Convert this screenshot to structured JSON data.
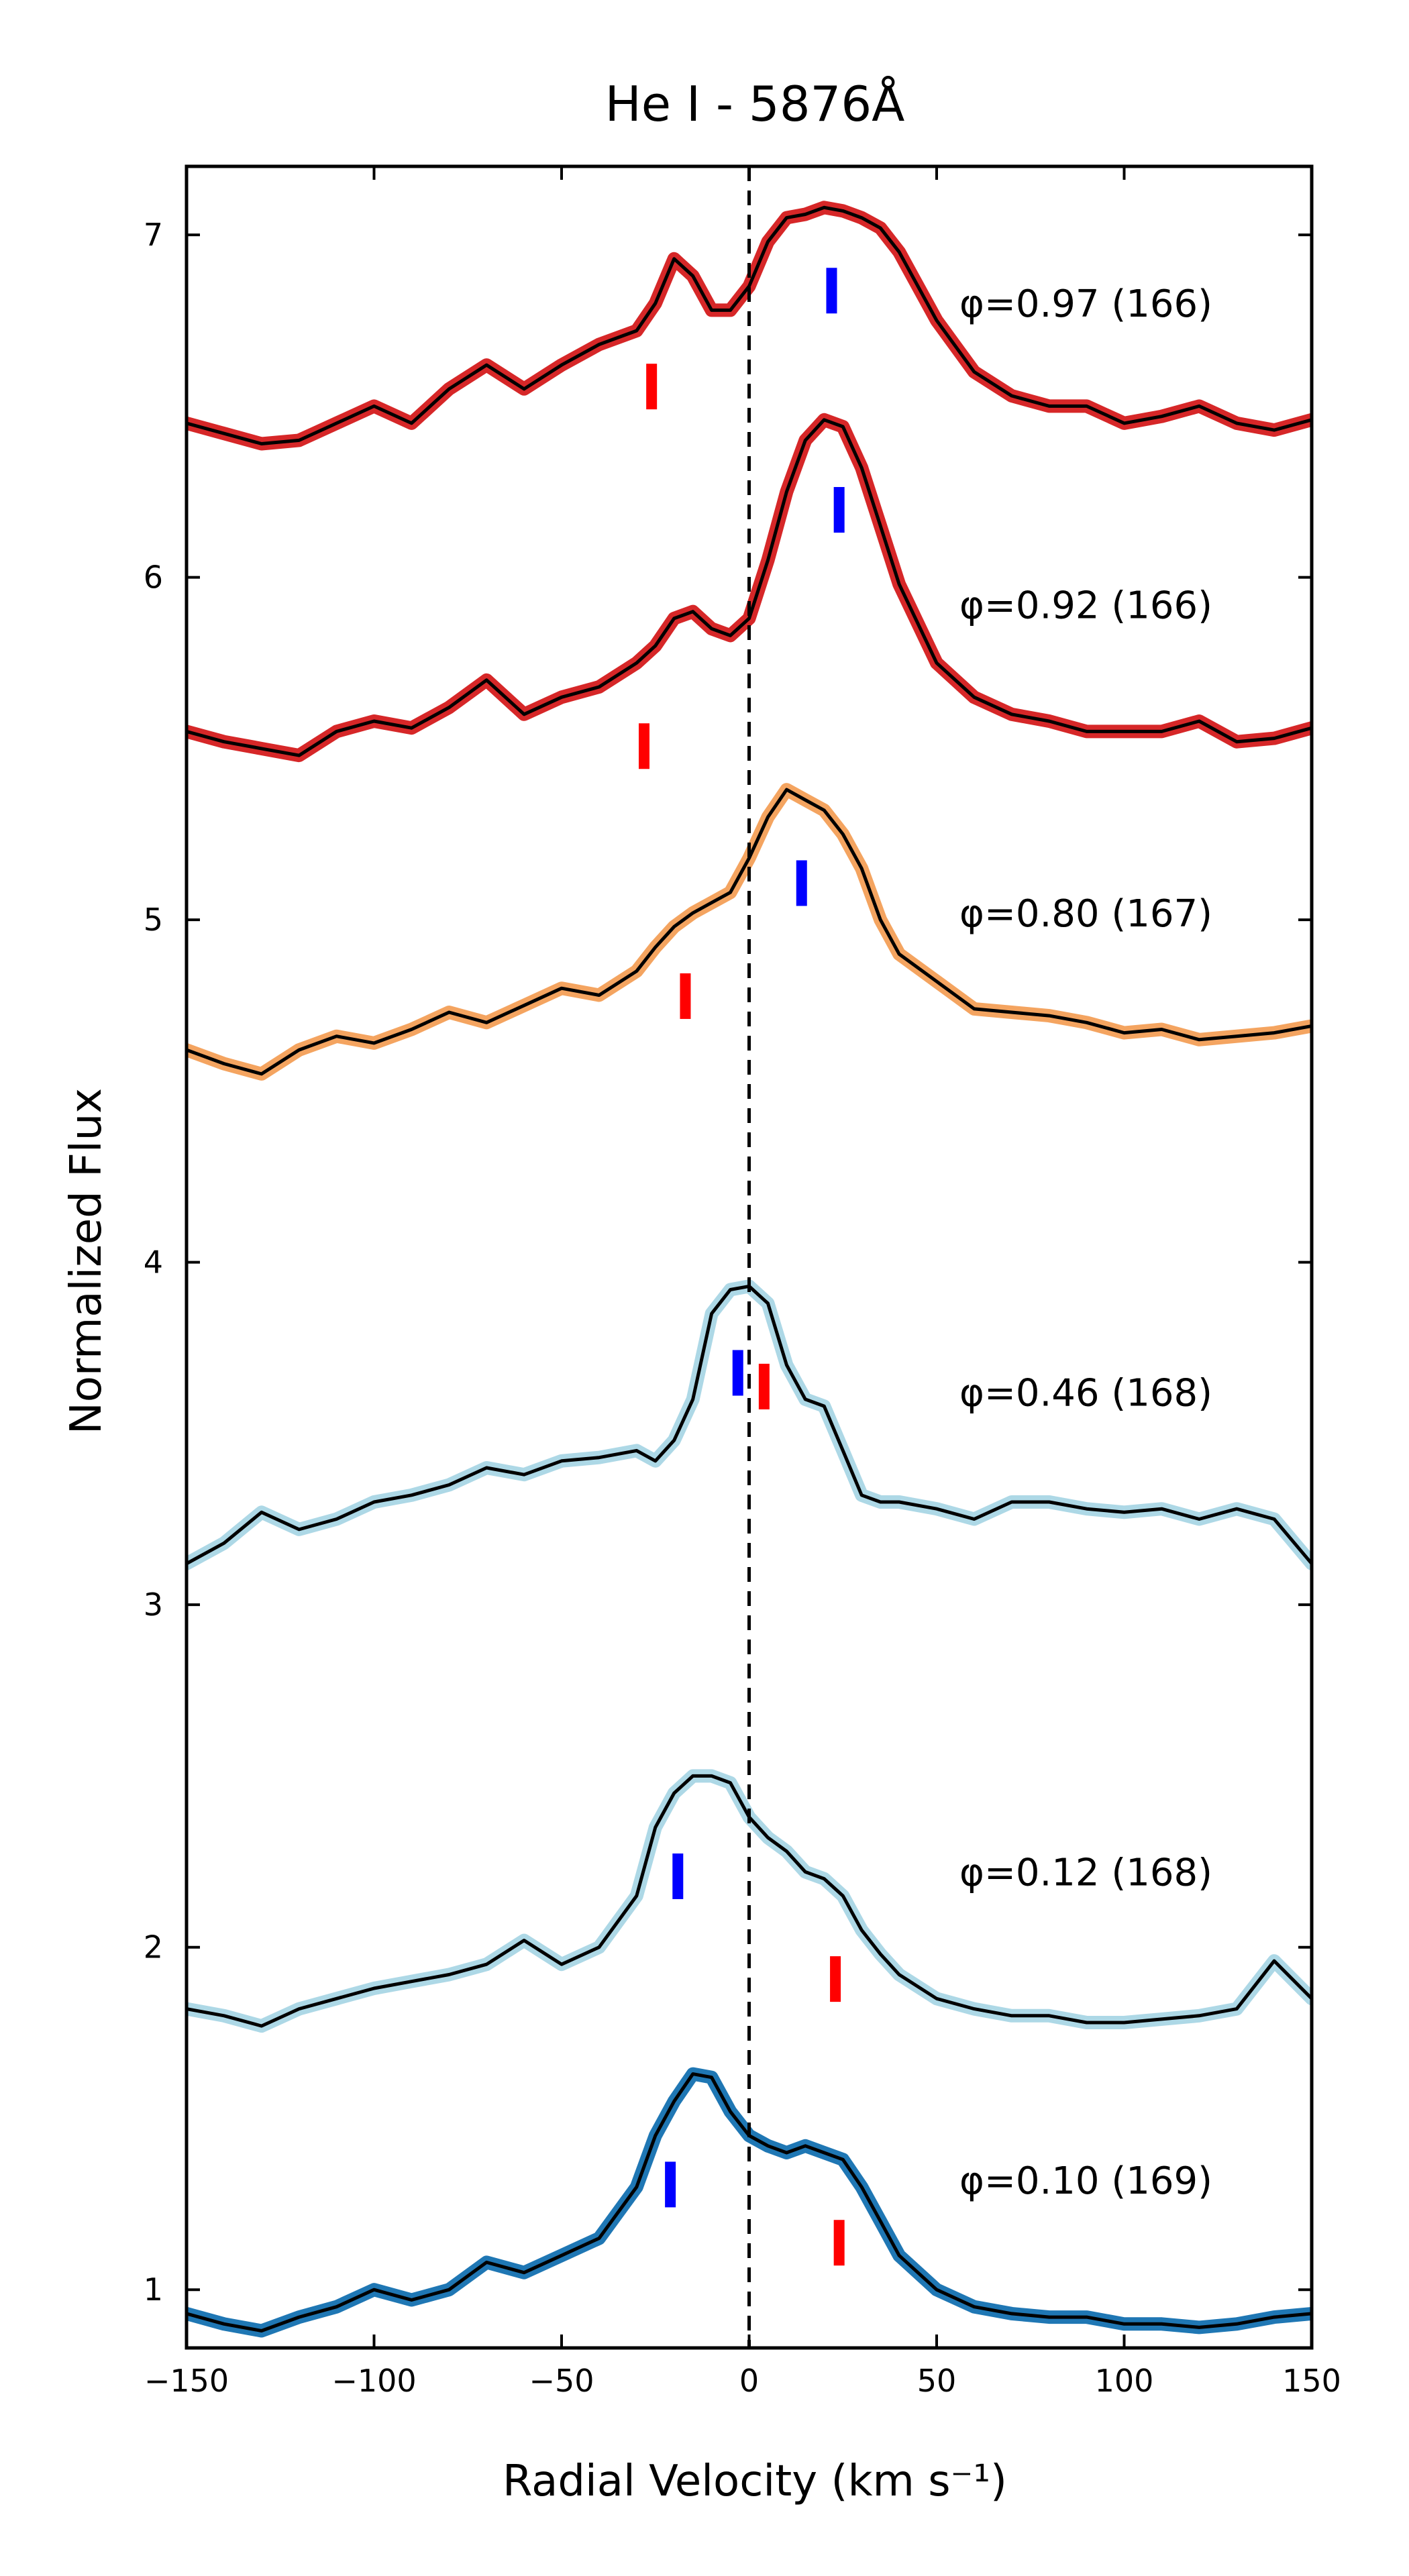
{
  "chart_data": {
    "type": "line",
    "title": "He I - 5876Å",
    "xlabel": "Radial Velocity (km s⁻¹)",
    "ylabel": "Normalized Flux",
    "xlim": [
      -150,
      150
    ],
    "ylim": [
      0.83,
      7.2
    ],
    "xticks": [
      -150,
      -100,
      -50,
      0,
      50,
      100,
      150
    ],
    "xtick_labels": [
      "−150",
      "−100",
      "−50",
      "0",
      "50",
      "100",
      "150"
    ],
    "yticks": [
      1,
      2,
      3,
      4,
      5,
      6,
      7
    ],
    "ytick_labels": [
      "1",
      "2",
      "3",
      "4",
      "5",
      "6",
      "7"
    ],
    "grid": false,
    "reference_line_x": 0,
    "series": [
      {
        "name": "φ=0.97 (166)",
        "label_y": 6.8,
        "halo_color": "#d62728",
        "x": [
          -150,
          -140,
          -130,
          -120,
          -110,
          -100,
          -90,
          -80,
          -70,
          -60,
          -50,
          -40,
          -30,
          -25,
          -20,
          -15,
          -10,
          -5,
          0,
          5,
          10,
          15,
          20,
          25,
          30,
          35,
          40,
          50,
          60,
          70,
          80,
          90,
          100,
          110,
          120,
          130,
          140,
          150
        ],
        "y": [
          6.45,
          6.42,
          6.39,
          6.4,
          6.45,
          6.5,
          6.45,
          6.55,
          6.62,
          6.55,
          6.62,
          6.68,
          6.72,
          6.8,
          6.93,
          6.88,
          6.78,
          6.78,
          6.85,
          6.98,
          7.05,
          7.06,
          7.08,
          7.07,
          7.05,
          7.02,
          6.95,
          6.75,
          6.6,
          6.53,
          6.5,
          6.5,
          6.45,
          6.47,
          6.5,
          6.45,
          6.43,
          6.46
        ],
        "markers": [
          {
            "v": -26,
            "color": "#ff0000"
          },
          {
            "v": 22,
            "color": "#0000ff"
          }
        ]
      },
      {
        "name": "φ=0.92 (166)",
        "label_y": 5.92,
        "halo_color": "#d62728",
        "x": [
          -150,
          -140,
          -130,
          -120,
          -110,
          -100,
          -90,
          -80,
          -70,
          -60,
          -50,
          -40,
          -30,
          -25,
          -20,
          -15,
          -10,
          -5,
          0,
          5,
          10,
          15,
          20,
          25,
          30,
          35,
          40,
          50,
          60,
          70,
          80,
          90,
          100,
          110,
          120,
          130,
          140,
          150
        ],
        "y": [
          5.55,
          5.52,
          5.5,
          5.48,
          5.55,
          5.58,
          5.56,
          5.62,
          5.7,
          5.6,
          5.65,
          5.68,
          5.75,
          5.8,
          5.88,
          5.9,
          5.85,
          5.83,
          5.88,
          6.05,
          6.25,
          6.4,
          6.46,
          6.44,
          6.32,
          6.15,
          5.98,
          5.75,
          5.65,
          5.6,
          5.58,
          5.55,
          5.55,
          5.55,
          5.58,
          5.52,
          5.53,
          5.56
        ],
        "markers": [
          {
            "v": -28,
            "color": "#ff0000"
          },
          {
            "v": 24,
            "color": "#0000ff"
          }
        ]
      },
      {
        "name": "φ=0.80 (167)",
        "label_y": 5.02,
        "halo_color": "#f4a460",
        "x": [
          -150,
          -140,
          -130,
          -120,
          -110,
          -100,
          -90,
          -80,
          -70,
          -60,
          -50,
          -40,
          -30,
          -25,
          -20,
          -15,
          -10,
          -5,
          0,
          5,
          10,
          15,
          20,
          25,
          30,
          35,
          40,
          50,
          60,
          70,
          80,
          90,
          100,
          110,
          120,
          130,
          140,
          150
        ],
        "y": [
          4.62,
          4.58,
          4.55,
          4.62,
          4.66,
          4.64,
          4.68,
          4.73,
          4.7,
          4.75,
          4.8,
          4.78,
          4.85,
          4.92,
          4.98,
          5.02,
          5.05,
          5.08,
          5.18,
          5.3,
          5.38,
          5.35,
          5.32,
          5.25,
          5.15,
          5.0,
          4.9,
          4.82,
          4.74,
          4.73,
          4.72,
          4.7,
          4.67,
          4.68,
          4.65,
          4.66,
          4.67,
          4.69
        ],
        "markers": [
          {
            "v": -17,
            "color": "#ff0000"
          },
          {
            "v": 14,
            "color": "#0000ff"
          }
        ]
      },
      {
        "name": "φ=0.46 (168)",
        "label_y": 3.62,
        "halo_color": "#add8e6",
        "x": [
          -150,
          -140,
          -130,
          -120,
          -110,
          -100,
          -90,
          -80,
          -70,
          -60,
          -50,
          -40,
          -30,
          -25,
          -20,
          -15,
          -10,
          -5,
          0,
          5,
          10,
          15,
          20,
          25,
          30,
          35,
          40,
          50,
          60,
          70,
          80,
          90,
          100,
          110,
          120,
          130,
          140,
          150
        ],
        "y": [
          3.12,
          3.18,
          3.27,
          3.22,
          3.25,
          3.3,
          3.32,
          3.35,
          3.4,
          3.38,
          3.42,
          3.43,
          3.45,
          3.42,
          3.48,
          3.6,
          3.85,
          3.92,
          3.93,
          3.88,
          3.7,
          3.6,
          3.58,
          3.45,
          3.32,
          3.3,
          3.3,
          3.28,
          3.25,
          3.3,
          3.3,
          3.28,
          3.27,
          3.28,
          3.25,
          3.28,
          3.25,
          3.12
        ],
        "markers": [
          {
            "v": -3,
            "color": "#0000ff"
          },
          {
            "v": 4,
            "color": "#ff0000"
          }
        ]
      },
      {
        "name": "φ=0.12 (168)",
        "label_y": 2.22,
        "halo_color": "#add8e6",
        "x": [
          -150,
          -140,
          -130,
          -120,
          -110,
          -100,
          -90,
          -80,
          -70,
          -60,
          -50,
          -40,
          -30,
          -25,
          -20,
          -15,
          -10,
          -5,
          0,
          5,
          10,
          15,
          20,
          25,
          30,
          35,
          40,
          50,
          60,
          70,
          80,
          90,
          100,
          110,
          120,
          130,
          140,
          150
        ],
        "y": [
          1.82,
          1.8,
          1.77,
          1.82,
          1.85,
          1.88,
          1.9,
          1.92,
          1.95,
          2.02,
          1.95,
          2.0,
          2.15,
          2.35,
          2.45,
          2.5,
          2.5,
          2.48,
          2.38,
          2.32,
          2.28,
          2.22,
          2.2,
          2.15,
          2.05,
          1.98,
          1.92,
          1.85,
          1.82,
          1.8,
          1.8,
          1.78,
          1.78,
          1.79,
          1.8,
          1.82,
          1.96,
          1.85
        ],
        "markers": [
          {
            "v": -19,
            "color": "#0000ff"
          },
          {
            "v": 23,
            "color": "#ff0000"
          }
        ]
      },
      {
        "name": "φ=0.10 (169)",
        "label_y": 1.32,
        "halo_color": "#1f77b4",
        "x": [
          -150,
          -140,
          -130,
          -120,
          -110,
          -100,
          -90,
          -80,
          -70,
          -60,
          -50,
          -40,
          -30,
          -25,
          -20,
          -15,
          -10,
          -5,
          0,
          5,
          10,
          15,
          20,
          25,
          30,
          35,
          40,
          50,
          60,
          70,
          80,
          90,
          100,
          110,
          120,
          130,
          140,
          150
        ],
        "y": [
          0.93,
          0.9,
          0.88,
          0.92,
          0.95,
          1.0,
          0.97,
          1.0,
          1.08,
          1.05,
          1.1,
          1.15,
          1.3,
          1.45,
          1.55,
          1.63,
          1.62,
          1.52,
          1.45,
          1.42,
          1.4,
          1.42,
          1.4,
          1.38,
          1.3,
          1.2,
          1.1,
          1.0,
          0.95,
          0.93,
          0.92,
          0.92,
          0.9,
          0.9,
          0.89,
          0.9,
          0.92,
          0.93
        ],
        "markers": [
          {
            "v": -21,
            "color": "#0000ff"
          },
          {
            "v": 24,
            "color": "#ff0000"
          }
        ]
      }
    ]
  }
}
